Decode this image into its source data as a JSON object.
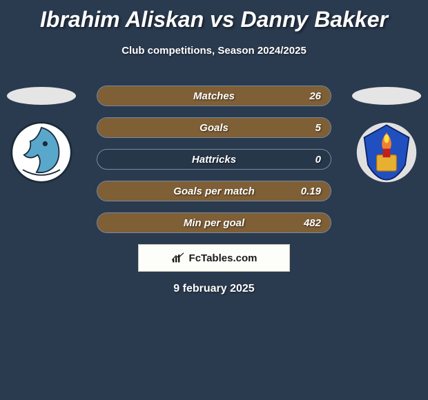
{
  "background_color": "#2a3a4f",
  "title": "Ibrahim Aliskan vs Danny Bakker",
  "title_color": "#ffffff",
  "title_fontsize": 32,
  "subtitle": "Club competitions, Season 2024/2025",
  "subtitle_fontsize": 15,
  "date": "9 february 2025",
  "logo_text": "FcTables.com",
  "stat_row": {
    "border_color": "#7a8aa0",
    "height": 30,
    "border_radius": 15
  },
  "fill_color_right": "#d88820",
  "stats": [
    {
      "label": "Matches",
      "value": "26",
      "fill_pct": 100,
      "side": "right"
    },
    {
      "label": "Goals",
      "value": "5",
      "fill_pct": 100,
      "side": "right"
    },
    {
      "label": "Hattricks",
      "value": "0",
      "fill_pct": 0,
      "side": "right"
    },
    {
      "label": "Goals per match",
      "value": "0.19",
      "fill_pct": 100,
      "side": "right"
    },
    {
      "label": "Min per goal",
      "value": "482",
      "fill_pct": 100,
      "side": "right"
    }
  ],
  "crest_left": {
    "name": "FC Den Bosch",
    "shape_bg": "#ffffff",
    "accent": "#5aa7cc",
    "outline": "#1a2a3a"
  },
  "crest_right": {
    "name": "Telstar",
    "shape_bg": "#2050c0",
    "flame": "#f08030",
    "frame": "#e8b030"
  }
}
